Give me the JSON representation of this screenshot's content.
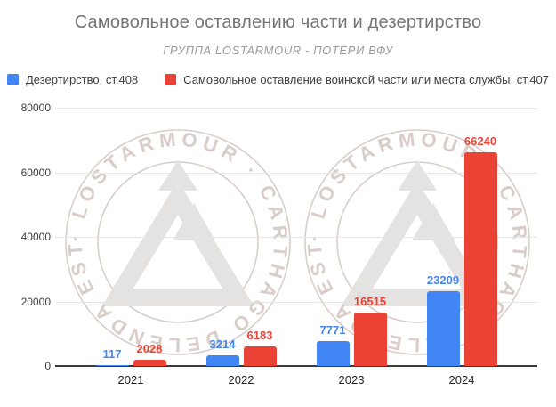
{
  "chart_data": {
    "type": "bar",
    "title": "Самовольное оставлению части и дезертирство",
    "subtitle": "ГРУППА LOSTARMOUR - ПОТЕРИ ВФУ",
    "categories": [
      "2021",
      "2022",
      "2023",
      "2024"
    ],
    "series": [
      {
        "name": "Дезертирство, ст.408",
        "color": "#4285F4",
        "values": [
          117,
          3214,
          7771,
          23209
        ]
      },
      {
        "name": "Самовольное оставление воинской части или места службы, ст.407",
        "color": "#EA4335",
        "values": [
          2028,
          6183,
          16515,
          66240
        ]
      }
    ],
    "ylim": [
      0,
      80000
    ],
    "yticks": [
      0,
      20000,
      40000,
      60000,
      80000
    ],
    "ytick_labels": [
      "0",
      "20000",
      "40000",
      "60000",
      "80000"
    ],
    "grid": true,
    "legend_position": "top",
    "value_labels": true
  },
  "watermark": {
    "ring_text": "· LOSTARMOUR · CARTHAGO DELENDA EST ",
    "stamp_count": 2
  },
  "colors": {
    "title": "#757575",
    "subtitle": "#9b9b9b",
    "gridline": "#e6e6e6",
    "axis_line": "#3a3a3a",
    "watermark_ring": "#d9cdc9",
    "watermark_logo": "#e4e3e2",
    "background": "#ffffff"
  }
}
